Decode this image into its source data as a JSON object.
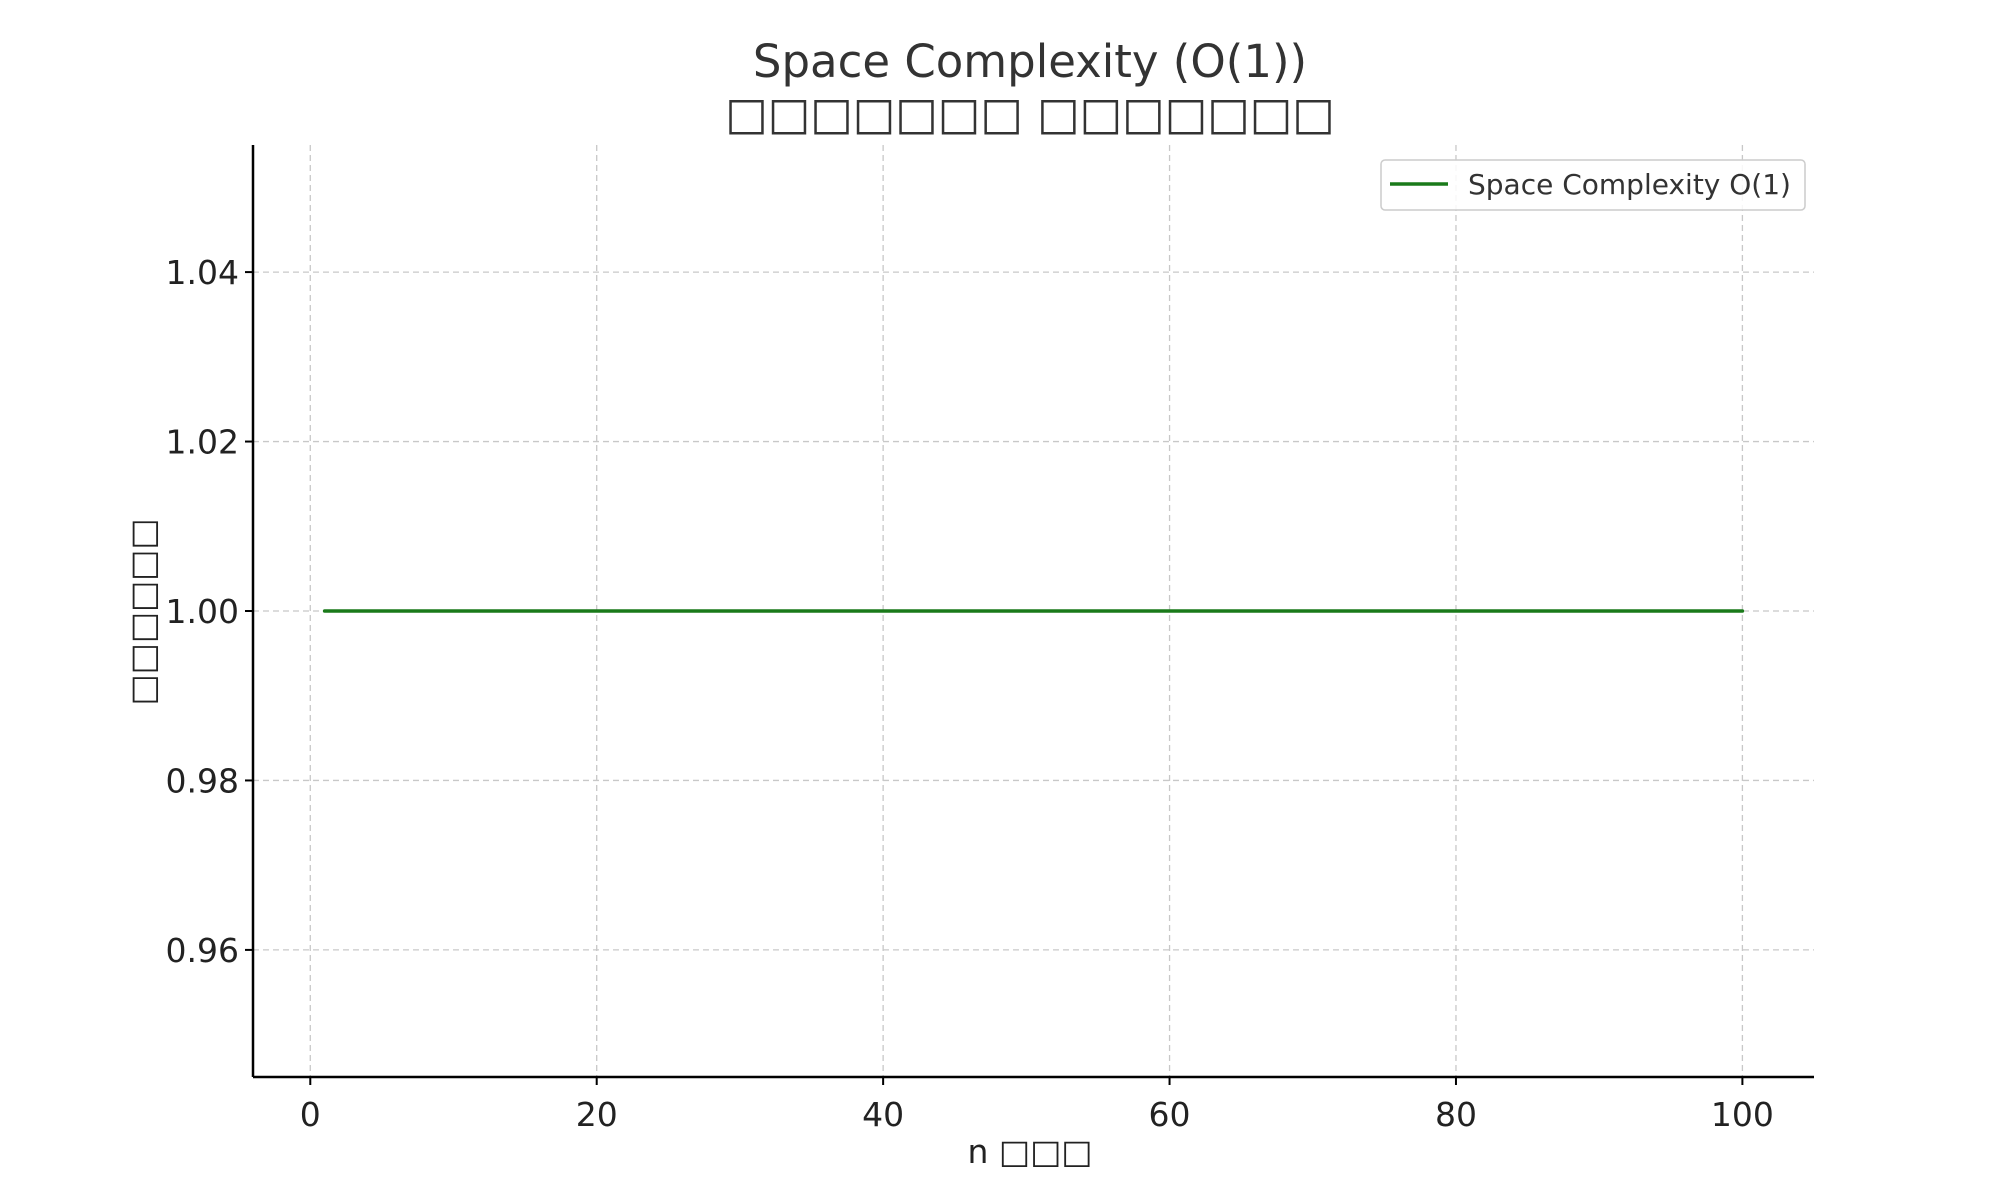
{
  "chart_data": {
    "type": "line",
    "title": "Space Complexity (O(1))",
    "subtitle": "□□□□□□□ □□□□□□□",
    "xlabel": "n □□□",
    "ylabel": "□□□□□□",
    "xlim": [
      -4,
      105
    ],
    "ylim": [
      0.945,
      1.055
    ],
    "xticks": [
      0,
      20,
      40,
      60,
      80,
      100
    ],
    "xtick_labels": [
      "0",
      "20",
      "40",
      "60",
      "80",
      "100"
    ],
    "yticks": [
      0.96,
      0.98,
      1.0,
      1.02,
      1.04
    ],
    "ytick_labels": [
      "0.96",
      "0.98",
      "1.00",
      "1.02",
      "1.04"
    ],
    "grid": true,
    "legend_position": "top-right",
    "series": [
      {
        "name": "Space Complexity O(1)",
        "color": "#1a7a1a",
        "x": [
          1,
          100
        ],
        "y": [
          1.0,
          1.0
        ]
      }
    ]
  }
}
